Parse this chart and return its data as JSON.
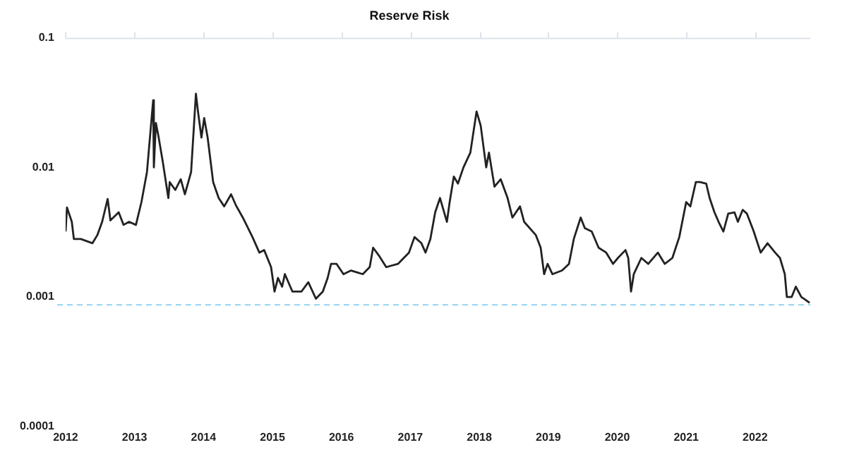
{
  "chart_data": {
    "type": "line",
    "title": "Reserve Risk",
    "log": "y",
    "grid": false,
    "legend": false,
    "marker": "none",
    "line_style": "solid",
    "xlim": [
      2012,
      2022.8
    ],
    "xticks": [
      2012,
      2013,
      2014,
      2015,
      2016,
      2017,
      2018,
      2019,
      2020,
      2021,
      2022
    ],
    "ylim": [
      0.0001,
      0.1
    ],
    "yticks": [
      0.0001,
      0.001,
      0.01,
      0.1
    ],
    "ref_lines": [
      {
        "axis": "y",
        "value": 0.00087,
        "color": "#8fd3f0",
        "line_style": "dashed"
      }
    ],
    "series": [
      {
        "color": "#222222",
        "x": [
          2012.0,
          2012.02,
          2012.09,
          2012.12,
          2012.22,
          2012.39,
          2012.46,
          2012.53,
          2012.61,
          2012.65,
          2012.77,
          2012.84,
          2012.92,
          2013.02,
          2013.1,
          2013.18,
          2013.27,
          2013.28,
          2013.31,
          2013.35,
          2013.41,
          2013.49,
          2013.51,
          2013.59,
          2013.67,
          2013.73,
          2013.82,
          2013.89,
          2013.92,
          2013.97,
          2014.01,
          2014.06,
          2014.14,
          2014.22,
          2014.3,
          2014.4,
          2014.47,
          2014.57,
          2014.71,
          2014.81,
          2014.88,
          2014.98,
          2015.03,
          2015.08,
          2015.14,
          2015.18,
          2015.29,
          2015.42,
          2015.52,
          2015.63,
          2015.73,
          2015.8,
          2015.85,
          2015.93,
          2016.03,
          2016.14,
          2016.31,
          2016.41,
          2016.46,
          2016.54,
          2016.65,
          2016.82,
          2016.98,
          2017.06,
          2017.16,
          2017.22,
          2017.29,
          2017.36,
          2017.43,
          2017.49,
          2017.53,
          2017.57,
          2017.63,
          2017.69,
          2017.77,
          2017.87,
          2017.96,
          2018.02,
          2018.1,
          2018.14,
          2018.22,
          2018.31,
          2018.41,
          2018.48,
          2018.59,
          2018.65,
          2018.82,
          2018.89,
          2018.94,
          2018.99,
          2019.06,
          2019.2,
          2019.3,
          2019.37,
          2019.47,
          2019.53,
          2019.63,
          2019.73,
          2019.84,
          2019.94,
          2020.01,
          2020.12,
          2020.16,
          2020.2,
          2020.24,
          2020.35,
          2020.45,
          2020.59,
          2020.69,
          2020.8,
          2020.9,
          2021.0,
          2021.06,
          2021.14,
          2021.2,
          2021.29,
          2021.34,
          2021.41,
          2021.47,
          2021.54,
          2021.61,
          2021.7,
          2021.75,
          2021.82,
          2021.88,
          2021.98,
          2022.08,
          2022.18,
          2022.29,
          2022.36,
          2022.43,
          2022.46,
          2022.53,
          2022.59,
          2022.67,
          2022.73,
          2022.79
        ],
        "values": [
          0.0032,
          0.0049,
          0.0038,
          0.0028,
          0.0028,
          0.0026,
          0.003,
          0.0038,
          0.0057,
          0.0039,
          0.0045,
          0.0036,
          0.0038,
          0.0036,
          0.0054,
          0.0092,
          0.033,
          0.01,
          0.022,
          0.017,
          0.011,
          0.0058,
          0.0077,
          0.0067,
          0.0081,
          0.0062,
          0.0092,
          0.037,
          0.027,
          0.017,
          0.024,
          0.017,
          0.0077,
          0.0058,
          0.005,
          0.0062,
          0.0051,
          0.0041,
          0.0029,
          0.0022,
          0.0023,
          0.0017,
          0.0011,
          0.0014,
          0.0012,
          0.0015,
          0.0011,
          0.0011,
          0.0013,
          0.00097,
          0.0011,
          0.0014,
          0.0018,
          0.0018,
          0.0015,
          0.0016,
          0.0015,
          0.0017,
          0.0024,
          0.0021,
          0.0017,
          0.0018,
          0.0022,
          0.0029,
          0.0026,
          0.0022,
          0.0028,
          0.0045,
          0.0058,
          0.0045,
          0.0038,
          0.0054,
          0.0085,
          0.0075,
          0.01,
          0.013,
          0.027,
          0.021,
          0.01,
          0.013,
          0.0071,
          0.0081,
          0.0058,
          0.0041,
          0.005,
          0.0038,
          0.003,
          0.0024,
          0.0015,
          0.0018,
          0.0015,
          0.0016,
          0.0018,
          0.0028,
          0.0041,
          0.0034,
          0.0032,
          0.0024,
          0.0022,
          0.0018,
          0.002,
          0.0023,
          0.002,
          0.0011,
          0.0015,
          0.002,
          0.0018,
          0.0022,
          0.0018,
          0.002,
          0.0029,
          0.0054,
          0.005,
          0.0077,
          0.0077,
          0.0075,
          0.0058,
          0.0045,
          0.0038,
          0.0032,
          0.0044,
          0.0045,
          0.0038,
          0.0047,
          0.0044,
          0.0032,
          0.0022,
          0.0026,
          0.0022,
          0.002,
          0.0015,
          0.001,
          0.001,
          0.0012,
          0.001,
          0.00095,
          0.0009
        ]
      }
    ]
  }
}
